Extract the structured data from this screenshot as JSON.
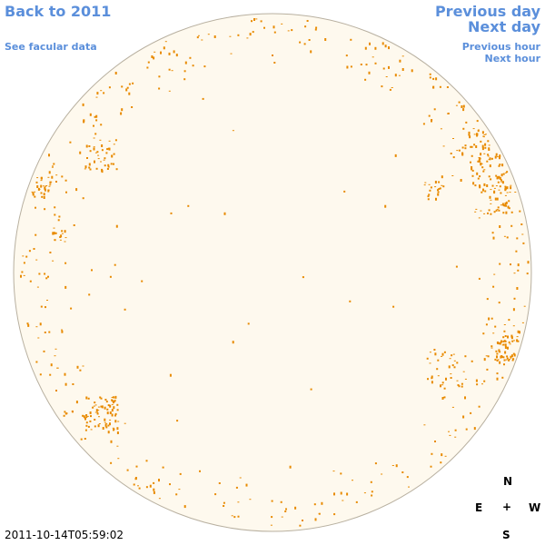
{
  "nav": {
    "back_to_year": "Back to 2011",
    "see_facular": "See facular data",
    "previous_day": "Previous day",
    "next_day": "Next day",
    "previous_hour": "Previous hour",
    "next_hour": "Next hour"
  },
  "compass": {
    "north": "N",
    "south": "S",
    "east": "E",
    "west": "W",
    "center": "+"
  },
  "timestamp": "2011-10-14T05:59:02",
  "colors": {
    "link": "#5b8fdb",
    "disk_fill": "#fef9ee",
    "disk_border": "#b8b0a0",
    "facula": "#e88a00"
  }
}
